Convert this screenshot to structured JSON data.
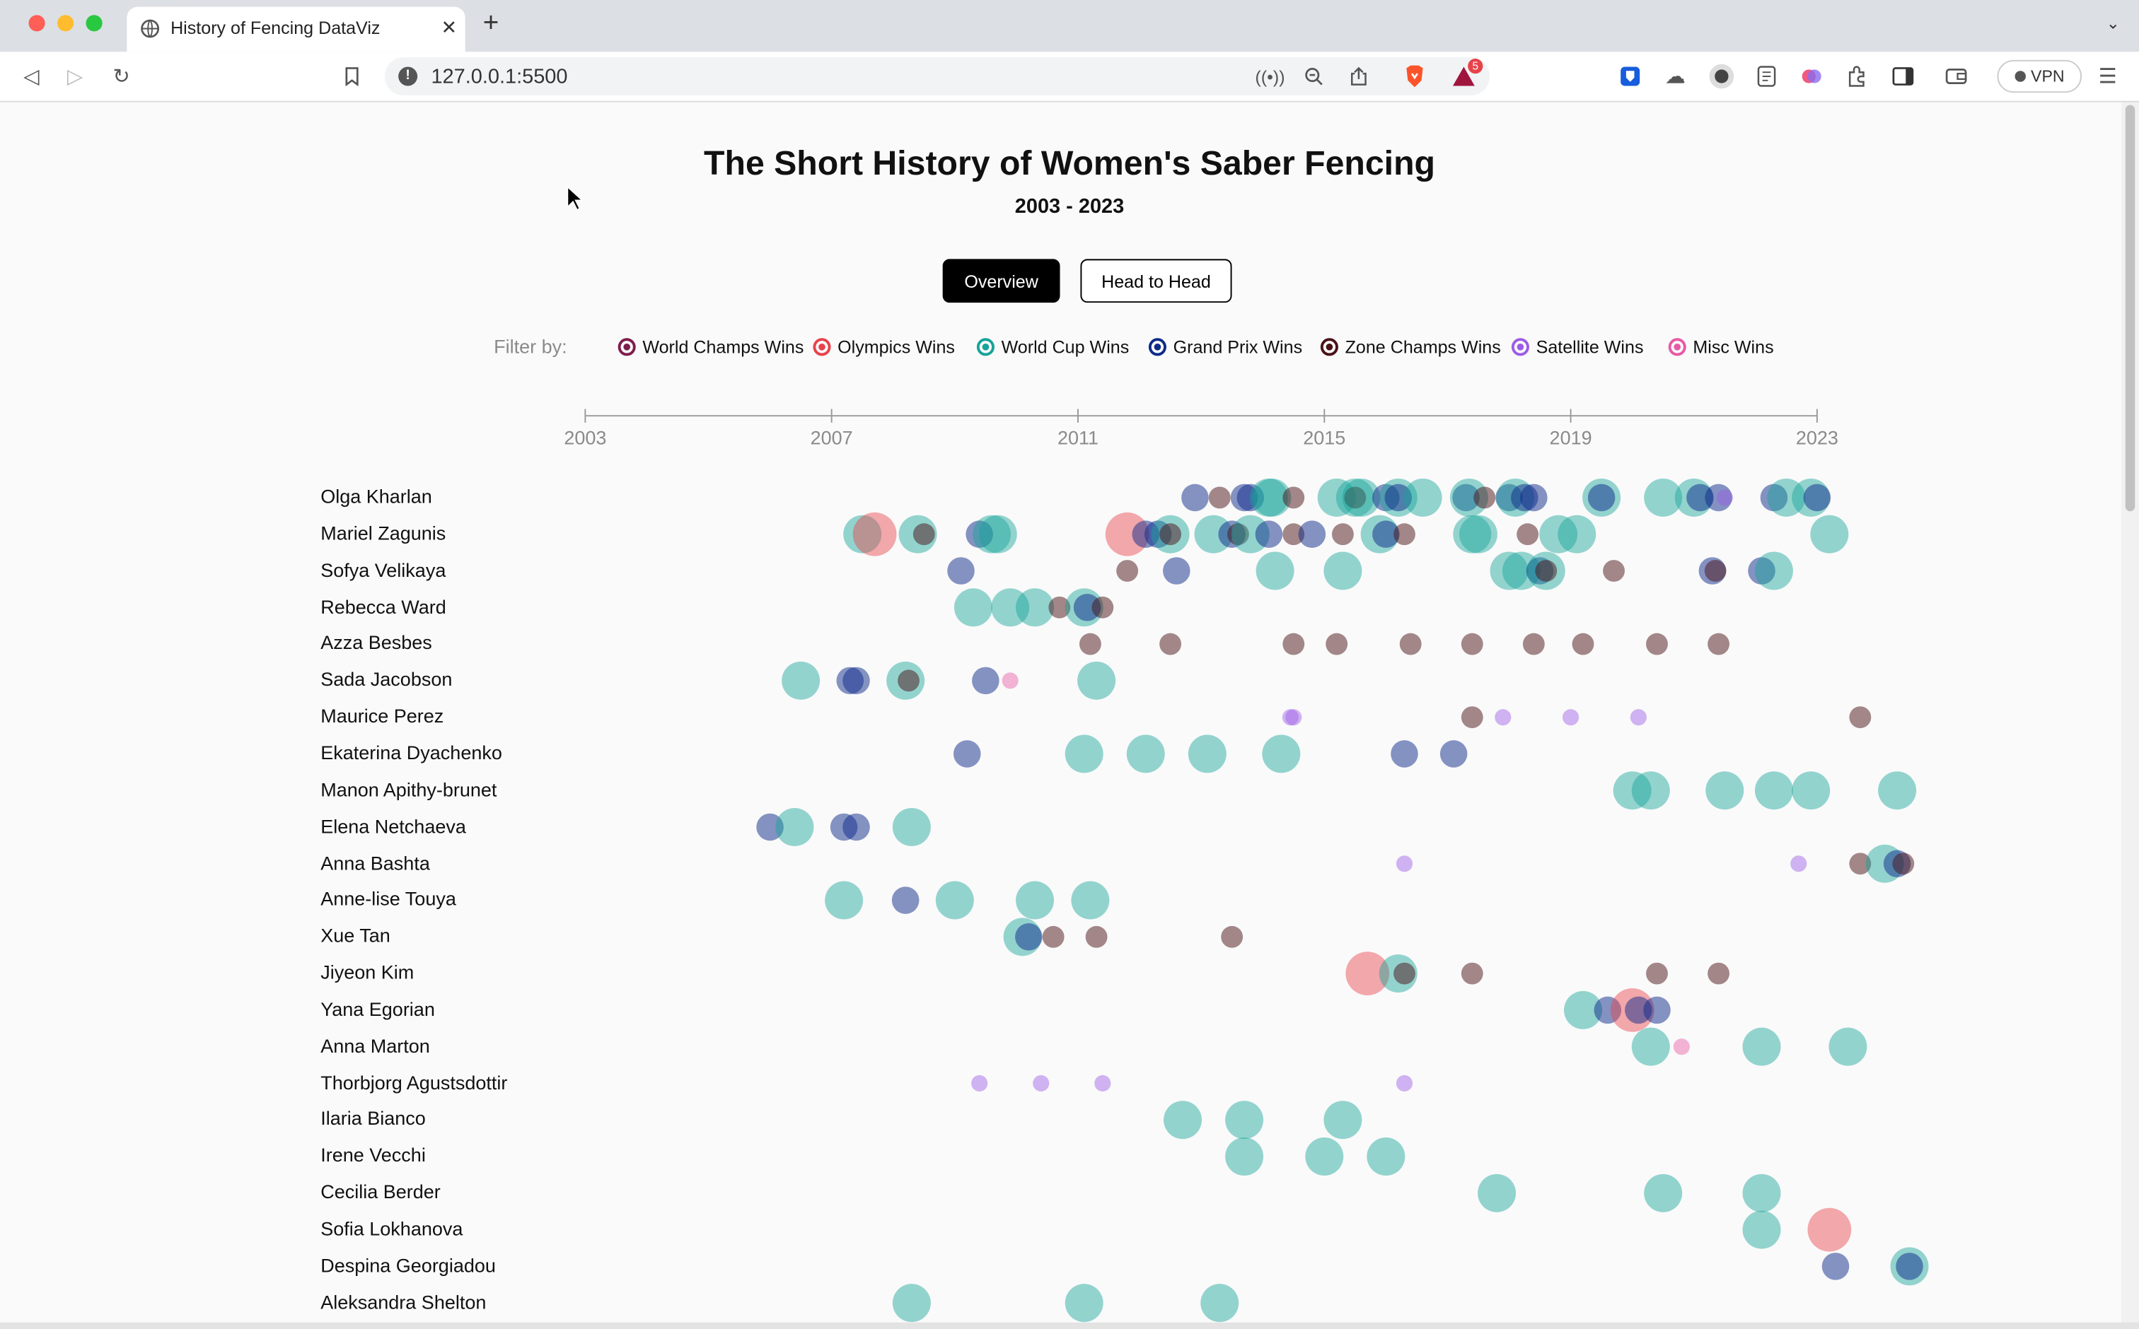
{
  "browser": {
    "tab_title": "History of Fencing DataViz",
    "url": "127.0.0.1:5500",
    "vpn_label": "VPN",
    "shields_count": "5"
  },
  "page": {
    "title": "The Short History of Women's Saber Fencing",
    "subtitle": "2003 - 2023",
    "buttons": [
      {
        "label": "Overview",
        "active": true
      },
      {
        "label": "Head to Head",
        "active": false
      }
    ],
    "filter_label": "Filter by:"
  },
  "chart_data": {
    "type": "scatter",
    "x_axis_ticks": [
      "2003",
      "2007",
      "2011",
      "2015",
      "2019",
      "2023"
    ],
    "xlim": [
      2003,
      2023
    ],
    "series": [
      {
        "name": "World Champs Wins",
        "color": "#7d1e4b"
      },
      {
        "name": "Olympics Wins",
        "color": "#e8424a"
      },
      {
        "name": "World Cup Wins",
        "color": "#16a39a"
      },
      {
        "name": "Grand Prix Wins",
        "color": "#0e2a8a"
      },
      {
        "name": "Zone Champs Wins",
        "color": "#4a1216"
      },
      {
        "name": "Satellite Wins",
        "color": "#9c5ce6"
      },
      {
        "name": "Misc Wins",
        "color": "#e75aa5"
      }
    ],
    "fencers": [
      {
        "name": "Olga Kharlan",
        "events": [
          [
            "gp",
            9.9
          ],
          [
            "zc",
            10.3
          ],
          [
            "gp",
            10.7
          ],
          [
            "gp",
            10.8
          ],
          [
            "wc",
            11.1
          ],
          [
            "wc",
            11.15
          ],
          [
            "zc",
            11.5
          ],
          [
            "wc",
            12.2
          ],
          [
            "wc",
            12.5
          ],
          [
            "zc",
            12.5
          ],
          [
            "wc",
            12.6
          ],
          [
            "gp",
            13.0
          ],
          [
            "wc",
            13.2
          ],
          [
            "gp",
            13.2
          ],
          [
            "wc",
            13.6
          ],
          [
            "gp",
            14.3
          ],
          [
            "wc",
            14.35
          ],
          [
            "zc",
            14.6
          ],
          [
            "gp",
            15.0
          ],
          [
            "wc",
            15.1
          ],
          [
            "gp",
            15.25
          ],
          [
            "gp",
            15.4
          ],
          [
            "wc",
            16.5
          ],
          [
            "gp",
            16.5
          ],
          [
            "wc",
            17.5
          ],
          [
            "wc",
            18.0
          ],
          [
            "gp",
            18.1
          ],
          [
            "gp",
            18.4
          ],
          [
            "sat",
            18.5
          ],
          [
            "gp",
            19.3
          ],
          [
            "wc",
            19.5
          ],
          [
            "wc",
            19.9
          ],
          [
            "gp",
            20.0
          ]
        ]
      },
      {
        "name": "Mariel Zagunis",
        "events": [
          [
            "wc",
            4.5
          ],
          [
            "oly",
            4.7
          ],
          [
            "wc",
            5.4
          ],
          [
            "zc",
            5.5
          ],
          [
            "gp",
            6.4
          ],
          [
            "wc",
            6.6
          ],
          [
            "wc",
            6.7
          ],
          [
            "oly",
            8.8
          ],
          [
            "gp",
            9.1
          ],
          [
            "gp",
            9.3
          ],
          [
            "wc",
            9.5
          ],
          [
            "zc",
            9.5
          ],
          [
            "wc",
            10.2
          ],
          [
            "gp",
            10.5
          ],
          [
            "zc",
            10.6
          ],
          [
            "wc",
            10.8
          ],
          [
            "gp",
            11.1
          ],
          [
            "zc",
            11.5
          ],
          [
            "gp",
            11.8
          ],
          [
            "zc",
            12.3
          ],
          [
            "wc",
            12.9
          ],
          [
            "gp",
            13.0
          ],
          [
            "zc",
            13.3
          ],
          [
            "wc",
            14.4
          ],
          [
            "wc",
            14.5
          ],
          [
            "zc",
            15.3
          ],
          [
            "wc",
            15.8
          ],
          [
            "wc",
            16.1
          ],
          [
            "wc",
            20.2
          ]
        ]
      },
      {
        "name": "Sofya Velikaya",
        "events": [
          [
            "gp",
            6.1
          ],
          [
            "zc",
            8.8
          ],
          [
            "gp",
            9.6
          ],
          [
            "wc",
            11.2
          ],
          [
            "wc",
            12.3
          ],
          [
            "wc",
            15.0
          ],
          [
            "wc",
            15.2
          ],
          [
            "gp",
            15.5
          ],
          [
            "wc",
            15.6
          ],
          [
            "zc",
            15.6
          ],
          [
            "zc",
            16.7
          ],
          [
            "gp",
            18.3
          ],
          [
            "zc",
            18.35
          ],
          [
            "gp",
            19.1
          ],
          [
            "wc",
            19.3
          ]
        ]
      },
      {
        "name": "Rebecca Ward",
        "events": [
          [
            "wc",
            6.3
          ],
          [
            "wc",
            6.9
          ],
          [
            "wc",
            7.3
          ],
          [
            "zc",
            7.7
          ],
          [
            "wc",
            8.1
          ],
          [
            "gp",
            8.15
          ],
          [
            "zc",
            8.4
          ]
        ]
      },
      {
        "name": "Azza Besbes",
        "events": [
          [
            "zc",
            8.2
          ],
          [
            "zc",
            9.5
          ],
          [
            "zc",
            11.5
          ],
          [
            "zc",
            12.2
          ],
          [
            "zc",
            13.4
          ],
          [
            "zc",
            14.4
          ],
          [
            "zc",
            15.4
          ],
          [
            "zc",
            16.2
          ],
          [
            "zc",
            17.4
          ],
          [
            "zc",
            18.4
          ]
        ]
      },
      {
        "name": "Sada Jacobson",
        "events": [
          [
            "wc",
            3.5
          ],
          [
            "gp",
            4.3
          ],
          [
            "gp",
            4.4
          ],
          [
            "wc",
            5.2
          ],
          [
            "zc",
            5.25
          ],
          [
            "gp",
            6.5
          ],
          [
            "misc",
            6.9
          ],
          [
            "wc",
            8.3
          ]
        ]
      },
      {
        "name": "Maurice Perez",
        "events": [
          [
            "sat",
            11.45
          ],
          [
            "sat",
            11.5
          ],
          [
            "zc",
            14.4
          ],
          [
            "sat",
            14.9
          ],
          [
            "sat",
            16.0
          ],
          [
            "sat",
            17.1
          ],
          [
            "zc",
            20.7
          ]
        ]
      },
      {
        "name": "Ekaterina Dyachenko",
        "events": [
          [
            "gp",
            6.2
          ],
          [
            "wc",
            8.1
          ],
          [
            "wc",
            9.1
          ],
          [
            "wc",
            10.1
          ],
          [
            "wc",
            11.3
          ],
          [
            "gp",
            13.3
          ],
          [
            "gp",
            14.1
          ]
        ]
      },
      {
        "name": "Manon Apithy-brunet",
        "events": [
          [
            "wc",
            17.0
          ],
          [
            "wc",
            17.3
          ],
          [
            "wc",
            18.5
          ],
          [
            "wc",
            19.3
          ],
          [
            "wc",
            19.9
          ],
          [
            "wc",
            21.3
          ]
        ]
      },
      {
        "name": "Elena Netchaeva",
        "events": [
          [
            "gp",
            3.0
          ],
          [
            "wc",
            3.4
          ],
          [
            "gp",
            4.2
          ],
          [
            "gp",
            4.4
          ],
          [
            "wc",
            5.3
          ]
        ]
      },
      {
        "name": "Anna Bashta",
        "events": [
          [
            "sat",
            13.3
          ],
          [
            "sat",
            19.7
          ],
          [
            "zc",
            20.7
          ],
          [
            "wc",
            21.1
          ],
          [
            "gp",
            21.3
          ],
          [
            "zc",
            21.4
          ]
        ]
      },
      {
        "name": "Anne-lise Touya",
        "events": [
          [
            "wc",
            4.2
          ],
          [
            "gp",
            5.2
          ],
          [
            "wc",
            6.0
          ],
          [
            "wc",
            7.3
          ],
          [
            "wc",
            8.2
          ]
        ]
      },
      {
        "name": "Xue Tan",
        "events": [
          [
            "wc",
            7.1
          ],
          [
            "gp",
            7.2
          ],
          [
            "zc",
            7.6
          ],
          [
            "zc",
            8.3
          ],
          [
            "zc",
            10.5
          ]
        ]
      },
      {
        "name": "Jiyeon Kim",
        "events": [
          [
            "oly",
            12.7
          ],
          [
            "wc",
            13.2
          ],
          [
            "zc",
            13.3
          ],
          [
            "zc",
            14.4
          ],
          [
            "zc",
            17.4
          ],
          [
            "zc",
            18.4
          ]
        ]
      },
      {
        "name": "Yana Egorian",
        "events": [
          [
            "wc",
            16.2
          ],
          [
            "gp",
            16.6
          ],
          [
            "oly",
            17.0
          ],
          [
            "gp",
            17.1
          ],
          [
            "gp",
            17.4
          ]
        ]
      },
      {
        "name": "Anna Marton",
        "events": [
          [
            "wc",
            17.3
          ],
          [
            "misc",
            17.8
          ],
          [
            "wc",
            19.1
          ],
          [
            "wc",
            20.5
          ]
        ]
      },
      {
        "name": "Thorbjorg Agustsdottir",
        "events": [
          [
            "sat",
            6.4
          ],
          [
            "sat",
            7.4
          ],
          [
            "sat",
            8.4
          ],
          [
            "sat",
            13.3
          ]
        ]
      },
      {
        "name": "Ilaria Bianco",
        "events": [
          [
            "wc",
            9.7
          ],
          [
            "wc",
            10.7
          ],
          [
            "wc",
            12.3
          ]
        ]
      },
      {
        "name": "Irene Vecchi",
        "events": [
          [
            "wc",
            10.7
          ],
          [
            "wc",
            12.0
          ],
          [
            "wc",
            13.0
          ]
        ]
      },
      {
        "name": "Cecilia Berder",
        "events": [
          [
            "wc",
            14.8
          ],
          [
            "wc",
            17.5
          ],
          [
            "wc",
            19.1
          ]
        ]
      },
      {
        "name": "Sofia Lokhanova",
        "events": [
          [
            "wc",
            19.1
          ],
          [
            "oly",
            20.2
          ]
        ]
      },
      {
        "name": "Despina Georgiadou",
        "events": [
          [
            "gp",
            20.3
          ],
          [
            "wc",
            21.5
          ],
          [
            "gp",
            21.5
          ]
        ]
      },
      {
        "name": "Aleksandra Shelton",
        "events": [
          [
            "wc",
            5.3
          ],
          [
            "wc",
            8.1
          ],
          [
            "wc",
            10.3
          ]
        ]
      }
    ]
  }
}
